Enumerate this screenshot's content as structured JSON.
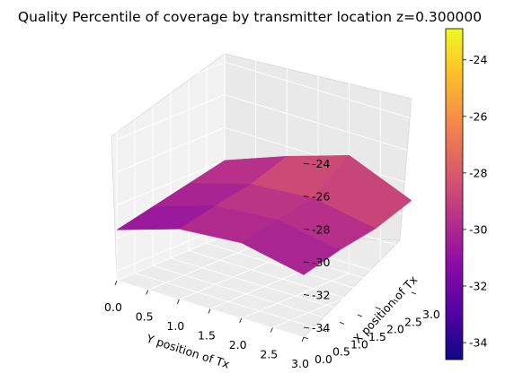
{
  "chart_data": {
    "type": "surface3d",
    "title": "Quality Percentile of coverage by transmitter location z=0.300000",
    "xlabel": "X position of Tx",
    "ylabel": "Y position of Tx",
    "zlabel": "",
    "x_ticks": [
      "0.0",
      "0.5",
      "1.0",
      "1.5",
      "2.0",
      "2.5",
      "3.0"
    ],
    "y_ticks": [
      "0.0",
      "0.5",
      "1.0",
      "1.5",
      "2.0",
      "2.5",
      "3.0"
    ],
    "z_ticks": [
      "-34",
      "-32",
      "-30",
      "-28",
      "-26",
      "-24"
    ],
    "zlim": [
      -34.6,
      -22.9
    ],
    "colormap": "plasma",
    "colorbar": {
      "ticks": [
        "-34",
        "-32",
        "-30",
        "-28",
        "-26",
        "-24"
      ],
      "range": [
        -34.6,
        -22.9
      ],
      "colors": [
        "#0d0887",
        "#5302a3",
        "#8b0aa5",
        "#b83289",
        "#db5c68",
        "#f48849",
        "#febd2a",
        "#f0f921"
      ]
    },
    "surface": {
      "x": [
        0.0,
        1.0,
        2.0,
        3.0
      ],
      "y": [
        0.0,
        1.0,
        2.0,
        3.0
      ],
      "z": [
        [
          -31.5,
          -30.3,
          -30.0,
          -30.8
        ],
        [
          -31.0,
          -29.8,
          -29.5,
          -30.2
        ],
        [
          -30.5,
          -29.4,
          -29.1,
          -29.8
        ],
        [
          -30.0,
          -28.6,
          -27.4,
          -29.0
        ]
      ]
    },
    "grid": true
  }
}
